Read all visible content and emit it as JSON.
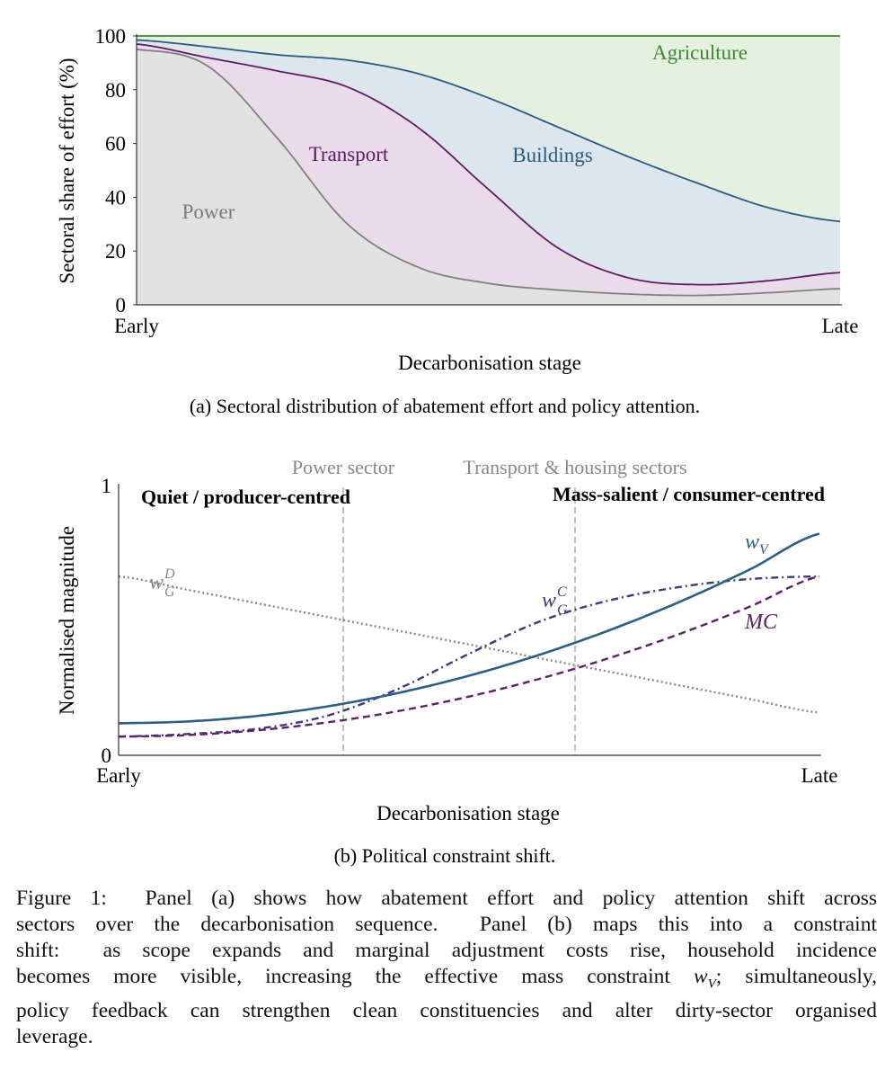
{
  "chart_data": [
    {
      "type": "area",
      "stacked": true,
      "title": "",
      "xlabel": "Decarbonisation stage",
      "ylabel": "Sectoral share of effort (%)",
      "ylim": [
        0,
        100
      ],
      "yticks": [
        "0",
        "20",
        "40",
        "60",
        "80",
        "100"
      ],
      "xtick_labels": [
        "Early",
        "Late"
      ],
      "x": [
        0,
        0.1,
        0.2,
        0.3,
        0.4,
        0.5,
        0.6,
        0.7,
        0.8,
        0.9,
        1.0
      ],
      "series": [
        {
          "name": "Power",
          "cumulative_top": [
            95,
            89,
            62,
            30,
            14,
            8,
            5.5,
            4,
            3.5,
            4.5,
            6
          ],
          "line_color": "#808080",
          "fill_color": "#e2e2e2"
        },
        {
          "name": "Transport",
          "cumulative_top": [
            97,
            92,
            87,
            81,
            66,
            43,
            21,
            10,
            7.5,
            9,
            12
          ],
          "line_color": "#5e1a66",
          "fill_color": "#eadbea"
        },
        {
          "name": "Buildings",
          "cumulative_top": [
            98.5,
            96,
            93,
            91,
            86,
            77,
            66,
            55,
            45,
            36,
            31
          ],
          "line_color": "#2a5a80",
          "fill_color": "#dde6ed"
        },
        {
          "name": "Agriculture",
          "cumulative_top": [
            100,
            100,
            100,
            100,
            100,
            100,
            100,
            100,
            100,
            100,
            100
          ],
          "line_color": "#3b8a2e",
          "fill_color": "#e5f0e0"
        }
      ],
      "caption": "(a) Sectoral distribution of abatement effort and policy attention."
    },
    {
      "type": "line",
      "title": "",
      "xlabel": "Decarbonisation stage",
      "ylabel": "Normalised magnitude",
      "ylim": [
        0,
        1
      ],
      "yticks": [
        "0",
        "1"
      ],
      "xtick_labels": [
        "Early",
        "Late"
      ],
      "x": [
        0,
        0.1,
        0.2,
        0.3,
        0.4,
        0.5,
        0.6,
        0.7,
        0.8,
        0.9,
        1.0
      ],
      "series": [
        {
          "name": "w_V",
          "label_main": "w",
          "label_sub": "V",
          "style": "solid",
          "color": "#2c5f82",
          "values": [
            0.12,
            0.127,
            0.148,
            0.184,
            0.234,
            0.298,
            0.376,
            0.468,
            0.574,
            0.695,
            0.83
          ]
        },
        {
          "name": "MC",
          "label_main": "MC",
          "style": "dashed",
          "color": "#5e2066",
          "values": [
            0.07,
            0.076,
            0.094,
            0.124,
            0.166,
            0.22,
            0.286,
            0.364,
            0.454,
            0.556,
            0.67
          ]
        },
        {
          "name": "w_G^C",
          "label_main": "w",
          "label_sub": "G",
          "label_sup": "C",
          "style": "dashdot",
          "color": "#3e3a7a",
          "values": [
            0.07,
            0.08,
            0.1,
            0.15,
            0.25,
            0.38,
            0.5,
            0.58,
            0.63,
            0.66,
            0.67
          ]
        },
        {
          "name": "w_G^D",
          "label_main": "w",
          "label_sub": "G",
          "label_sup": "D",
          "style": "dotted",
          "color": "#888888",
          "values": [
            0.67,
            0.619,
            0.568,
            0.517,
            0.466,
            0.415,
            0.364,
            0.313,
            0.262,
            0.211,
            0.16
          ]
        }
      ],
      "vertical_markers": [
        {
          "x": 0.32,
          "label": "Power sector"
        },
        {
          "x": 0.65,
          "label": "Transport & housing sectors"
        }
      ],
      "region_labels": [
        "Quiet / producer-centred",
        "Mass-salient / consumer-centred"
      ],
      "caption": "(b) Political constraint shift."
    }
  ],
  "figure_caption": {
    "lines": [
      [
        {
          "t": "Figure 1:  Panel (a) shows how abatement effort and policy attention shift across"
        }
      ],
      [
        {
          "t": "sectors over the decarbonisation sequence.  Panel (b) maps this into a constraint"
        }
      ],
      [
        {
          "t": "shift:  as scope expands and marginal adjustment costs rise, household incidence"
        }
      ],
      [
        {
          "t": "becomes more visible, increasing the effective mass constraint "
        },
        {
          "t": "w",
          "italic": true
        },
        {
          "t": "V",
          "sub": true
        },
        {
          "t": "; simultaneously,"
        }
      ],
      [
        {
          "t": "policy feedback can strengthen clean constituencies and alter dirty-sector organised"
        }
      ],
      [
        {
          "t": "leverage."
        }
      ]
    ]
  }
}
